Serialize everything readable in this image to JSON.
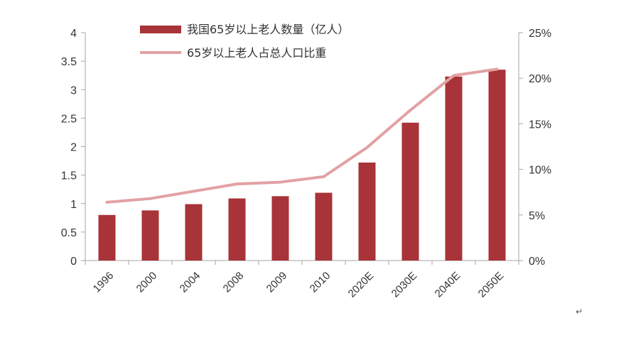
{
  "chart_data": {
    "type": "bar",
    "categories": [
      "1996",
      "2000",
      "2004",
      "2008",
      "2009",
      "2010",
      "2020E",
      "2030E",
      "2040E",
      "2050E"
    ],
    "series": [
      {
        "name": "我国65岁以上老人数量（亿人）",
        "type": "bar",
        "axis": "left",
        "values": [
          0.8,
          0.88,
          0.99,
          1.09,
          1.13,
          1.19,
          1.72,
          2.42,
          3.23,
          3.35
        ],
        "color": "#a83338"
      },
      {
        "name": "65岁以上老人占总人口比重",
        "type": "line",
        "axis": "right",
        "unit": "%",
        "values": [
          6.4,
          6.8,
          7.6,
          8.4,
          8.6,
          9.2,
          12.4,
          16.5,
          20.3,
          21.0
        ],
        "color": "#e2a1a3"
      }
    ],
    "y_left": {
      "ylim": [
        0,
        4
      ],
      "ticks": [
        "0",
        "0.5",
        "1",
        "1.5",
        "2",
        "2.5",
        "3",
        "3.5",
        "4"
      ]
    },
    "y_right": {
      "ylim": [
        0,
        25
      ],
      "ticks": [
        "0%",
        "5%",
        "10%",
        "15%",
        "20%",
        "25%"
      ]
    },
    "grid": false,
    "legend_placement": "top-center",
    "title": "",
    "xlabel": "",
    "ylabel": ""
  },
  "page_mark": "↵"
}
